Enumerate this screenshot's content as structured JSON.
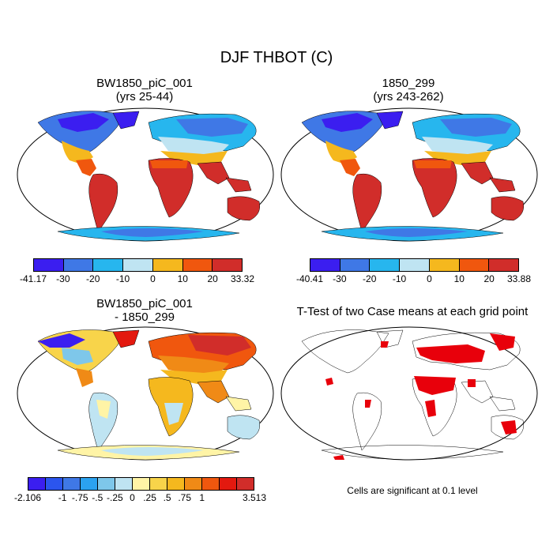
{
  "title": "DJF THBOT (C)",
  "panels": [
    {
      "id": "p1",
      "title_line1": "BW1850_piC_001",
      "title_line2": "(yrs 25-44)"
    },
    {
      "id": "p2",
      "title_line1": "1850_299",
      "title_line2": "(yrs 243-262)"
    },
    {
      "id": "p3",
      "title_line1": "BW1850_piC_001",
      "title_line2": "- 1850_299"
    },
    {
      "id": "p4",
      "title_line1": "T-Test of two Case means at each grid point",
      "title_line2": ""
    }
  ],
  "colorbars": {
    "cb1": {
      "colors": [
        "#3b1ef0",
        "#3f78e6",
        "#27b6ee",
        "#bfe4f2",
        "#f5b81e",
        "#f0570e",
        "#d12d2a"
      ],
      "labels": [
        "-41.17",
        "-30",
        "-20",
        "-10",
        "0",
        "10",
        "20",
        "33.32"
      ]
    },
    "cb2": {
      "colors": [
        "#3b1ef0",
        "#3f78e6",
        "#27b6ee",
        "#bfe4f2",
        "#f5b81e",
        "#f0570e",
        "#d12d2a"
      ],
      "labels": [
        "-40.41",
        "-30",
        "-20",
        "-10",
        "0",
        "10",
        "20",
        "33.88"
      ]
    },
    "cb3": {
      "colors": [
        "#3b1ef0",
        "#2b55ee",
        "#3f78e6",
        "#2ba2f0",
        "#7ec7ea",
        "#bfe4f2",
        "#fff4a6",
        "#f8d44a",
        "#f5b81e",
        "#f08a16",
        "#f0570e",
        "#e3190f",
        "#d12d2a"
      ],
      "labels": [
        "-2.106",
        "-1",
        "-.75",
        "-.5",
        "-.25",
        "0",
        ".25",
        ".5",
        ".75",
        "1",
        "3.513"
      ],
      "label_slots": [
        0,
        2,
        3,
        4,
        5,
        6,
        7,
        8,
        9,
        10,
        13
      ]
    }
  },
  "significance_note": "Cells are significant at 0.1 level"
}
